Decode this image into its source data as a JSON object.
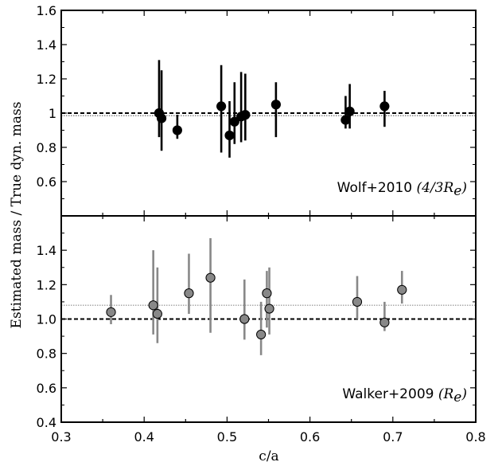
{
  "chart_data": {
    "type": "scatter",
    "xlabel": "c/a",
    "ylabel": "Estimated mass / True dyn. mass",
    "xlim": [
      0.3,
      0.8
    ],
    "x_ticks": [
      "0.3",
      "0.4",
      "0.5",
      "0.6",
      "0.7",
      "0.8"
    ],
    "panels": [
      {
        "name": "top",
        "annotation": "Wolf+2010",
        "annotation_math": "(4/3R",
        "annotation_sub": "e",
        "annotation_close": ")",
        "ylim": [
          0.4,
          1.6
        ],
        "y_ticks": [
          "0.6",
          "0.8",
          "1",
          "1.2",
          "1.4",
          "1.6"
        ],
        "reference_line": 1.0,
        "mean_line": 0.985,
        "marker_color": "#000000",
        "errorbar_color": "#000000",
        "mean_line_color": "#888888",
        "points": [
          {
            "x": 0.418,
            "y": 1.0,
            "lo": 0.86,
            "hi": 1.31
          },
          {
            "x": 0.421,
            "y": 0.97,
            "lo": 0.78,
            "hi": 1.25
          },
          {
            "x": 0.44,
            "y": 0.9,
            "lo": 0.85,
            "hi": 0.99
          },
          {
            "x": 0.493,
            "y": 1.04,
            "lo": 0.77,
            "hi": 1.28
          },
          {
            "x": 0.503,
            "y": 0.87,
            "lo": 0.74,
            "hi": 1.07
          },
          {
            "x": 0.509,
            "y": 0.95,
            "lo": 0.82,
            "hi": 1.18
          },
          {
            "x": 0.517,
            "y": 0.98,
            "lo": 0.83,
            "hi": 1.24
          },
          {
            "x": 0.522,
            "y": 0.99,
            "lo": 0.84,
            "hi": 1.23
          },
          {
            "x": 0.559,
            "y": 1.05,
            "lo": 0.86,
            "hi": 1.18
          },
          {
            "x": 0.643,
            "y": 0.96,
            "lo": 0.91,
            "hi": 1.1
          },
          {
            "x": 0.648,
            "y": 1.01,
            "lo": 0.91,
            "hi": 1.17
          },
          {
            "x": 0.69,
            "y": 1.04,
            "lo": 0.92,
            "hi": 1.13
          }
        ]
      },
      {
        "name": "bottom",
        "annotation": "Walker+2009",
        "annotation_math": "(R",
        "annotation_sub": "e",
        "annotation_close": ")",
        "ylim": [
          0.4,
          1.6
        ],
        "y_ticks": [
          "0.4",
          "0.6",
          "0.8",
          "1.0",
          "1.2",
          "1.4"
        ],
        "reference_line": 1.0,
        "mean_line": 1.08,
        "marker_color": "#888888",
        "errorbar_color": "#888888",
        "mean_line_color": "#aaaaaa",
        "points": [
          {
            "x": 0.36,
            "y": 1.04,
            "lo": 0.97,
            "hi": 1.14
          },
          {
            "x": 0.411,
            "y": 1.08,
            "lo": 0.91,
            "hi": 1.4
          },
          {
            "x": 0.416,
            "y": 1.03,
            "lo": 0.86,
            "hi": 1.3
          },
          {
            "x": 0.454,
            "y": 1.15,
            "lo": 1.03,
            "hi": 1.38
          },
          {
            "x": 0.48,
            "y": 1.24,
            "lo": 0.92,
            "hi": 1.47
          },
          {
            "x": 0.521,
            "y": 1.0,
            "lo": 0.88,
            "hi": 1.23
          },
          {
            "x": 0.541,
            "y": 0.91,
            "lo": 0.79,
            "hi": 1.1
          },
          {
            "x": 0.548,
            "y": 1.15,
            "lo": 0.95,
            "hi": 1.28
          },
          {
            "x": 0.551,
            "y": 1.06,
            "lo": 0.91,
            "hi": 1.3
          },
          {
            "x": 0.657,
            "y": 1.1,
            "lo": 1.0,
            "hi": 1.25
          },
          {
            "x": 0.69,
            "y": 0.98,
            "lo": 0.93,
            "hi": 1.1
          },
          {
            "x": 0.711,
            "y": 1.17,
            "lo": 1.09,
            "hi": 1.28
          }
        ]
      }
    ]
  }
}
